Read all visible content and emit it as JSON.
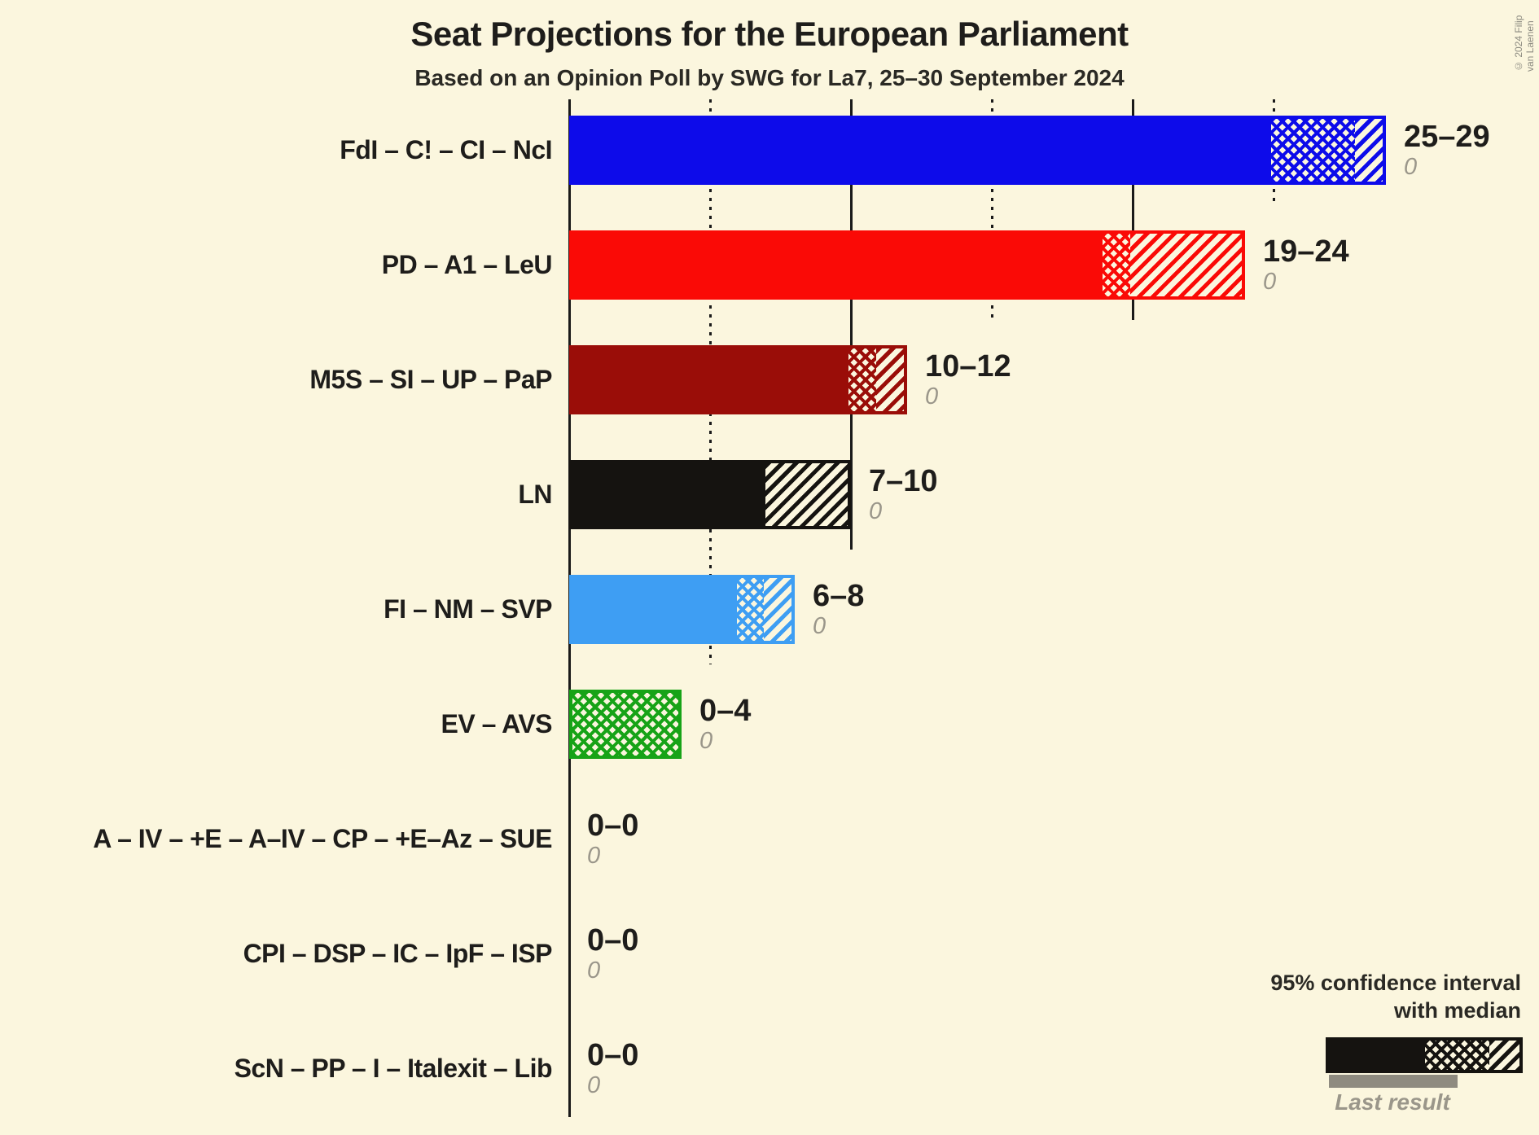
{
  "title": "Seat Projections for the European Parliament",
  "subtitle": "Based on an Opinion Poll by SWG for La7, 25–30 September 2024",
  "copyright": "© 2024 Filip van Laenen",
  "legend": {
    "line1": "95% confidence interval",
    "line2": "with median",
    "last_result_label": "Last result"
  },
  "chart_data": {
    "type": "bar",
    "orientation": "horizontal",
    "unit": "seats",
    "x_axis": {
      "min": 0,
      "max": 30,
      "gridline_interval": 5,
      "solid_gridlines": [
        0,
        10,
        20
      ],
      "dotted_gridlines": [
        5,
        15,
        25
      ],
      "tick_labels_visible": false
    },
    "bar_style_note": "solid = 0 to CI low, crosshatch = CI low to median, diagonal stripes = median to CI high",
    "parties": [
      {
        "label": "FdI – C! – CI – NcI",
        "color": "#0d0bea",
        "ci_low": 25,
        "median": 28,
        "ci_high": 29,
        "range_label": "25–29",
        "last_result": 0,
        "last_result_label": "0"
      },
      {
        "label": "PD – A1 – LeU",
        "color": "#fa0a06",
        "ci_low": 19,
        "median": 20,
        "ci_high": 24,
        "range_label": "19–24",
        "last_result": 0,
        "last_result_label": "0"
      },
      {
        "label": "M5S – SI – UP – PaP",
        "color": "#9a0d08",
        "ci_low": 10,
        "median": 11,
        "ci_high": 12,
        "range_label": "10–12",
        "last_result": 0,
        "last_result_label": "0"
      },
      {
        "label": "LN",
        "color": "#151310",
        "ci_low": 7,
        "median": 7,
        "ci_high": 10,
        "range_label": "7–10",
        "last_result": 0,
        "last_result_label": "0"
      },
      {
        "label": "FI – NM – SVP",
        "color": "#3e9ef3",
        "ci_low": 6,
        "median": 7,
        "ci_high": 8,
        "range_label": "6–8",
        "last_result": 0,
        "last_result_label": "0"
      },
      {
        "label": "EV – AVS",
        "color": "#17a317",
        "ci_low": 0,
        "median": 4,
        "ci_high": 4,
        "range_label": "0–4",
        "last_result": 0,
        "last_result_label": "0"
      },
      {
        "label": "A – IV – +E – A–IV – CP – +E–Az – SUE",
        "color": "#151310",
        "ci_low": 0,
        "median": 0,
        "ci_high": 0,
        "range_label": "0–0",
        "last_result": 0,
        "last_result_label": "0"
      },
      {
        "label": "CPI – DSP – IC – IpF – ISP",
        "color": "#151310",
        "ci_low": 0,
        "median": 0,
        "ci_high": 0,
        "range_label": "0–0",
        "last_result": 0,
        "last_result_label": "0"
      },
      {
        "label": "ScN – PP – I – Italexit – Lib",
        "color": "#151310",
        "ci_low": 0,
        "median": 0,
        "ci_high": 0,
        "range_label": "0–0",
        "last_result": 0,
        "last_result_label": "0"
      }
    ]
  }
}
